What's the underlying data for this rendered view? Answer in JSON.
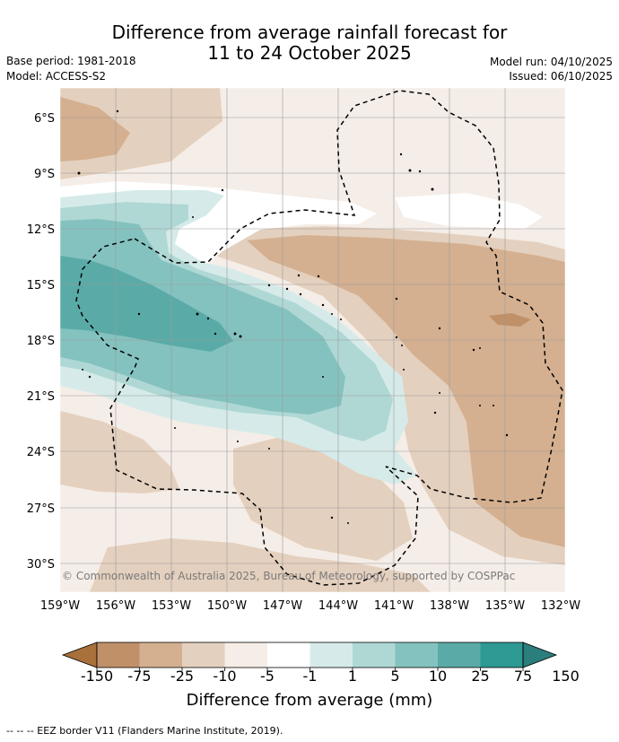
{
  "title": {
    "line1": "Difference from average rainfall forecast for",
    "line2": "11 to 24 October 2025"
  },
  "meta": {
    "base_period": "Base period: 1981-2018",
    "model": "Model: ACCESS-S2",
    "model_run": "Model run: 04/10/2025",
    "issued": "Issued: 06/10/2025"
  },
  "map": {
    "lat_labels": [
      "6°S",
      "9°S",
      "12°S",
      "15°S",
      "18°S",
      "21°S",
      "24°S",
      "27°S",
      "30°S"
    ],
    "lon_labels": [
      "159°W",
      "156°W",
      "153°W",
      "150°W",
      "147°W",
      "144°W",
      "141°W",
      "138°W",
      "135°W",
      "132°W"
    ],
    "copyright": "© Commonwealth of Australia 2025, Bureau of Meteorology, supported by COSPPac"
  },
  "colorbar": {
    "labels": [
      "-150",
      "-75",
      "-25",
      "-10",
      "-5",
      "-1",
      "1",
      "5",
      "10",
      "25",
      "75",
      "150"
    ],
    "colors": [
      "#a8703a",
      "#c09068",
      "#d4b090",
      "#e4d0be",
      "#f5ede7",
      "#ffffff",
      "#d6ebe9",
      "#afd8d5",
      "#84c2bf",
      "#5aaba8",
      "#2f9994",
      "#2a7e7b"
    ],
    "title": "Difference from average (mm)"
  },
  "legend": {
    "eez": "--  --  -- EEZ border V11 (Flanders Marine Institute, 2019)."
  }
}
